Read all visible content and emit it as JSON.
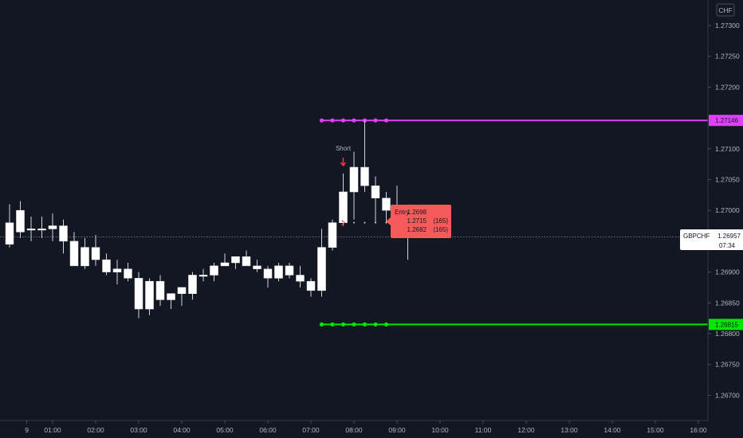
{
  "chart_data": {
    "type": "candlestick",
    "symbol": "GBPCHF",
    "currency": "CHF",
    "last_price": "1.26957",
    "countdown": "07:34",
    "y_ticks": [
      "1.27300",
      "1.27250",
      "1.27200",
      "1.27100",
      "1.27050",
      "1.27000",
      "1.26900",
      "1.26850",
      "1.26800",
      "1.26750",
      "1.26700"
    ],
    "y_tick_values": [
      1.273,
      1.2725,
      1.272,
      1.271,
      1.2705,
      1.27,
      1.269,
      1.2685,
      1.268,
      1.2675,
      1.267
    ],
    "x_ticks": [
      "9",
      "01:00",
      "02:00",
      "03:00",
      "04:00",
      "05:00",
      "06:00",
      "07:00",
      "08:00",
      "09:00",
      "10:00",
      "11:00",
      "12:00",
      "13:00",
      "14:00",
      "15:00",
      "16:00"
    ],
    "x_tick_hours": [
      0.4,
      1,
      2,
      3,
      4,
      5,
      6,
      7,
      8,
      9,
      10,
      11,
      12,
      13,
      14,
      15,
      16
    ],
    "candles": [
      {
        "t": 0.0,
        "o": 1.2698,
        "h": 1.2701,
        "l": 1.2694,
        "c": 1.26945
      },
      {
        "t": 0.25,
        "o": 1.26965,
        "h": 1.27015,
        "l": 1.26955,
        "c": 1.27
      },
      {
        "t": 0.5,
        "o": 1.2697,
        "h": 1.2699,
        "l": 1.2695,
        "c": 1.2697
      },
      {
        "t": 0.75,
        "o": 1.2697,
        "h": 1.2699,
        "l": 1.26955,
        "c": 1.2697
      },
      {
        "t": 1.0,
        "o": 1.2697,
        "h": 1.26995,
        "l": 1.2695,
        "c": 1.26975
      },
      {
        "t": 1.25,
        "o": 1.26975,
        "h": 1.26985,
        "l": 1.2693,
        "c": 1.2695
      },
      {
        "t": 1.5,
        "o": 1.2695,
        "h": 1.26965,
        "l": 1.2691,
        "c": 1.2691
      },
      {
        "t": 1.75,
        "o": 1.2691,
        "h": 1.26955,
        "l": 1.26905,
        "c": 1.2694
      },
      {
        "t": 2.0,
        "o": 1.2694,
        "h": 1.2696,
        "l": 1.2691,
        "c": 1.2692
      },
      {
        "t": 2.25,
        "o": 1.2692,
        "h": 1.2693,
        "l": 1.26895,
        "c": 1.269
      },
      {
        "t": 2.5,
        "o": 1.269,
        "h": 1.2692,
        "l": 1.2688,
        "c": 1.26905
      },
      {
        "t": 2.75,
        "o": 1.26905,
        "h": 1.26915,
        "l": 1.26885,
        "c": 1.2689
      },
      {
        "t": 3.0,
        "o": 1.2689,
        "h": 1.269,
        "l": 1.26825,
        "c": 1.2684
      },
      {
        "t": 3.25,
        "o": 1.2684,
        "h": 1.2689,
        "l": 1.2683,
        "c": 1.26885
      },
      {
        "t": 3.5,
        "o": 1.26885,
        "h": 1.26895,
        "l": 1.26845,
        "c": 1.26855
      },
      {
        "t": 3.75,
        "o": 1.26855,
        "h": 1.26865,
        "l": 1.2684,
        "c": 1.26865
      },
      {
        "t": 4.0,
        "o": 1.26865,
        "h": 1.26875,
        "l": 1.26845,
        "c": 1.26875
      },
      {
        "t": 4.25,
        "o": 1.26865,
        "h": 1.269,
        "l": 1.26855,
        "c": 1.26895
      },
      {
        "t": 4.5,
        "o": 1.26895,
        "h": 1.26905,
        "l": 1.26885,
        "c": 1.26895
      },
      {
        "t": 4.75,
        "o": 1.26895,
        "h": 1.26915,
        "l": 1.26885,
        "c": 1.2691
      },
      {
        "t": 5.0,
        "o": 1.2691,
        "h": 1.2693,
        "l": 1.2691,
        "c": 1.26915
      },
      {
        "t": 5.25,
        "o": 1.26915,
        "h": 1.26925,
        "l": 1.26905,
        "c": 1.26925
      },
      {
        "t": 5.5,
        "o": 1.26925,
        "h": 1.26935,
        "l": 1.2691,
        "c": 1.2691
      },
      {
        "t": 5.75,
        "o": 1.2691,
        "h": 1.2692,
        "l": 1.269,
        "c": 1.26905
      },
      {
        "t": 6.0,
        "o": 1.26905,
        "h": 1.2691,
        "l": 1.26875,
        "c": 1.2689
      },
      {
        "t": 6.25,
        "o": 1.2689,
        "h": 1.26915,
        "l": 1.26885,
        "c": 1.2691
      },
      {
        "t": 6.5,
        "o": 1.2691,
        "h": 1.26915,
        "l": 1.2689,
        "c": 1.26895
      },
      {
        "t": 6.75,
        "o": 1.26895,
        "h": 1.2691,
        "l": 1.26875,
        "c": 1.26885
      },
      {
        "t": 7.0,
        "o": 1.26885,
        "h": 1.2689,
        "l": 1.2686,
        "c": 1.2687
      },
      {
        "t": 7.25,
        "o": 1.2687,
        "h": 1.2697,
        "l": 1.2686,
        "c": 1.2694
      },
      {
        "t": 7.5,
        "o": 1.2694,
        "h": 1.26985,
        "l": 1.26935,
        "c": 1.2698
      },
      {
        "t": 7.75,
        "o": 1.2698,
        "h": 1.2706,
        "l": 1.26975,
        "c": 1.2703
      },
      {
        "t": 8.0,
        "o": 1.2703,
        "h": 1.27095,
        "l": 1.26985,
        "c": 1.2707
      },
      {
        "t": 8.25,
        "o": 1.2707,
        "h": 1.27146,
        "l": 1.2703,
        "c": 1.2704
      },
      {
        "t": 8.5,
        "o": 1.2704,
        "h": 1.27055,
        "l": 1.2698,
        "c": 1.2702
      },
      {
        "t": 8.75,
        "o": 1.2702,
        "h": 1.2703,
        "l": 1.2698,
        "c": 1.27
      },
      {
        "t": 9.0,
        "o": 1.27,
        "h": 1.2704,
        "l": 1.26975,
        "c": 1.2699
      },
      {
        "t": 9.25,
        "o": 1.2699,
        "h": 1.26995,
        "l": 1.2692,
        "c": 1.26957
      }
    ],
    "signal": {
      "label": "Short",
      "t": 7.75
    },
    "take_profit_line": {
      "value": 1.27146,
      "label": "1.27146",
      "color": "#e040fb",
      "dots_from": 7.25,
      "dots_to": 8.75
    },
    "stop_line": {
      "value": 1.26815,
      "label": "1.26815",
      "color": "#00e600",
      "dots_from": 7.25,
      "dots_to": 8.75
    },
    "entry_level": 1.2698,
    "trade_box": {
      "entry_label": "Entry",
      "entry_value": "1.2698",
      "r1_value": "1.2715",
      "r1_pips": "(165)",
      "r2_value": "1.2682",
      "r2_pips": "(165)",
      "color": "#f75a5a"
    }
  }
}
